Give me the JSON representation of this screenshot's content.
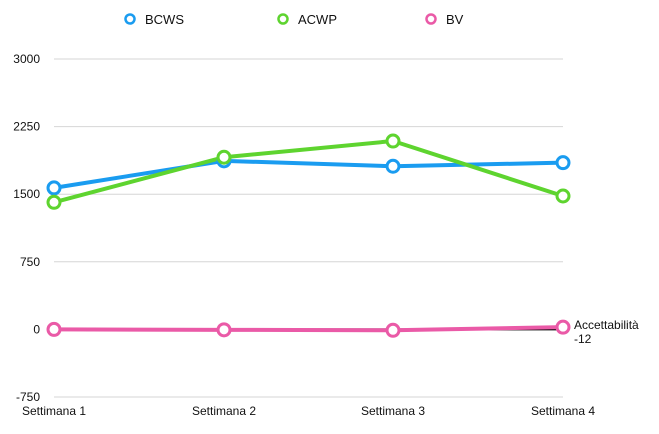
{
  "chart_data": {
    "type": "line",
    "title": "",
    "xlabel": "",
    "ylabel": "",
    "categories": [
      "Settimana 1",
      "Settimana 2",
      "Settimana 3",
      "Settimana 4"
    ],
    "ylim": [
      -750,
      3000
    ],
    "y_ticks": [
      -750,
      0,
      750,
      1500,
      2250,
      3000
    ],
    "grid": true,
    "legend_position": "top",
    "series": [
      {
        "name": "BCWS",
        "color": "#1a9cf0",
        "values": [
          1570,
          1870,
          1810,
          1850
        ]
      },
      {
        "name": "ACWP",
        "color": "#5ed42f",
        "values": [
          1410,
          1910,
          2090,
          1480
        ]
      },
      {
        "name": "BV",
        "color": "#ea5aa7",
        "values": [
          0,
          -5,
          -10,
          25
        ]
      }
    ],
    "annotations": [
      {
        "text": "Accettabilità",
        "series": "BV",
        "category": "Settimana 4"
      },
      {
        "text": "-12",
        "series": "BV",
        "category": "Settimana 4"
      }
    ],
    "zero_line_color": "#000000",
    "grid_color": "#d6d6d6"
  }
}
